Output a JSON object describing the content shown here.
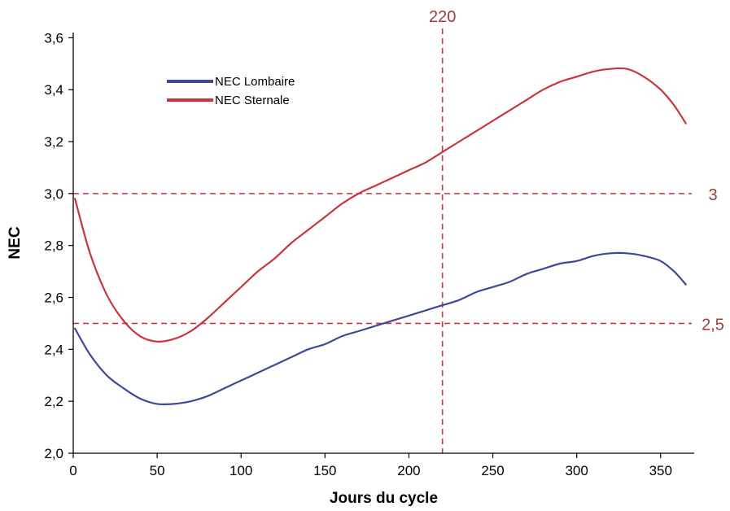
{
  "chart_data": {
    "type": "line",
    "title": "",
    "xlabel": "Jours du cycle",
    "ylabel": "NEC",
    "xlim": [
      0,
      370
    ],
    "ylim": [
      2.0,
      3.62
    ],
    "x_ticks": [
      0,
      50,
      100,
      150,
      200,
      250,
      300,
      350
    ],
    "x_tick_labels": [
      "0",
      "50",
      "100",
      "150",
      "200",
      "250",
      "300",
      "350"
    ],
    "y_ticks": [
      2.0,
      2.2,
      2.4,
      2.6,
      2.8,
      3.0,
      3.2,
      3.4,
      3.6
    ],
    "y_tick_labels": [
      "2,0",
      "2,2",
      "2,4",
      "2,6",
      "2,8",
      "3,0",
      "3,2",
      "3,4",
      "3,6"
    ],
    "grid": false,
    "legend_position": "top-left",
    "series": [
      {
        "name": "NEC Lombaire",
        "color": "#3d4a9b",
        "x": [
          1,
          10,
          20,
          30,
          40,
          50,
          60,
          70,
          80,
          90,
          100,
          110,
          120,
          130,
          140,
          150,
          160,
          170,
          180,
          190,
          200,
          210,
          220,
          230,
          240,
          250,
          260,
          270,
          280,
          290,
          300,
          310,
          320,
          330,
          340,
          350,
          358,
          365
        ],
        "y": [
          2.48,
          2.38,
          2.3,
          2.25,
          2.21,
          2.19,
          2.19,
          2.2,
          2.22,
          2.25,
          2.28,
          2.31,
          2.34,
          2.37,
          2.4,
          2.42,
          2.45,
          2.47,
          2.49,
          2.51,
          2.53,
          2.55,
          2.57,
          2.59,
          2.62,
          2.64,
          2.66,
          2.69,
          2.71,
          2.73,
          2.74,
          2.76,
          2.77,
          2.77,
          2.76,
          2.74,
          2.7,
          2.65
        ]
      },
      {
        "name": "NEC Sternale",
        "color": "#c8363d",
        "x": [
          1,
          10,
          20,
          30,
          40,
          50,
          60,
          70,
          80,
          90,
          100,
          110,
          120,
          130,
          140,
          150,
          160,
          170,
          180,
          190,
          200,
          210,
          220,
          230,
          240,
          250,
          260,
          270,
          280,
          290,
          300,
          310,
          320,
          330,
          340,
          350,
          358,
          365
        ],
        "y": [
          2.98,
          2.77,
          2.61,
          2.51,
          2.45,
          2.43,
          2.44,
          2.47,
          2.52,
          2.58,
          2.64,
          2.7,
          2.75,
          2.81,
          2.86,
          2.91,
          2.96,
          3.0,
          3.03,
          3.06,
          3.09,
          3.12,
          3.16,
          3.2,
          3.24,
          3.28,
          3.32,
          3.36,
          3.4,
          3.43,
          3.45,
          3.47,
          3.48,
          3.48,
          3.45,
          3.4,
          3.34,
          3.27
        ]
      }
    ],
    "reference_lines": [
      {
        "axis": "x",
        "value": 220,
        "label": "220"
      },
      {
        "axis": "y",
        "value": 3.0,
        "label": "3"
      },
      {
        "axis": "y",
        "value": 2.5,
        "label": "2,5"
      }
    ],
    "reference_color": "#c8363d",
    "reference_label_color": "#9b3c3c"
  }
}
